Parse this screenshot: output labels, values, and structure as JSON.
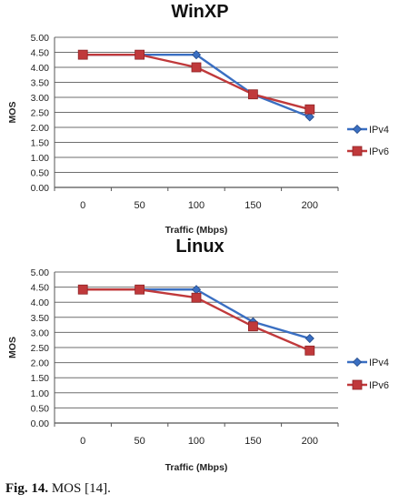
{
  "chart_data": [
    {
      "type": "line",
      "title": "WinXP",
      "xlabel": "Traffic (Mbps)",
      "ylabel": "MOS",
      "categories": [
        "0",
        "50",
        "100",
        "150",
        "200"
      ],
      "ylim": [
        0,
        5
      ],
      "yticks": [
        "5.00",
        "4.50",
        "4.00",
        "3.50",
        "3.00",
        "2.50",
        "2.00",
        "1.50",
        "1.00",
        "0.50",
        "0.00"
      ],
      "grid": true,
      "legend": "right",
      "series": [
        {
          "name": "IPv4",
          "values": [
            4.42,
            4.42,
            4.42,
            3.1,
            2.35
          ],
          "color": "#3a6fc2",
          "marker": "diamond"
        },
        {
          "name": "IPv6",
          "values": [
            4.42,
            4.42,
            4.0,
            3.1,
            2.6
          ],
          "color": "#c0393b",
          "marker": "square"
        }
      ]
    },
    {
      "type": "line",
      "title": "Linux",
      "xlabel": "Traffic (Mbps)",
      "ylabel": "MOS",
      "categories": [
        "0",
        "50",
        "100",
        "150",
        "200"
      ],
      "ylim": [
        0,
        5
      ],
      "yticks": [
        "5.00",
        "4.50",
        "4.00",
        "3.50",
        "3.00",
        "2.50",
        "2.00",
        "1.50",
        "1.00",
        "0.50",
        "0.00"
      ],
      "grid": true,
      "legend": "right",
      "series": [
        {
          "name": "IPv4",
          "values": [
            4.42,
            4.42,
            4.42,
            3.35,
            2.8
          ],
          "color": "#3a6fc2",
          "marker": "diamond"
        },
        {
          "name": "IPv6",
          "values": [
            4.42,
            4.42,
            4.15,
            3.2,
            2.4
          ],
          "color": "#c0393b",
          "marker": "square"
        }
      ]
    }
  ],
  "caption": {
    "label": "Fig. 14.",
    "text": " MOS [14]."
  }
}
